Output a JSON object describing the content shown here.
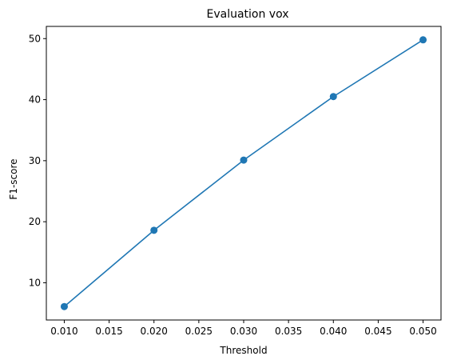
{
  "chart_data": {
    "type": "line",
    "title": "Evaluation vox",
    "xlabel": "Threshold",
    "ylabel": "F1-score",
    "series": [
      {
        "x": [
          0.01,
          0.02,
          0.03,
          0.04,
          0.05
        ],
        "y": [
          6.1,
          18.6,
          30.1,
          40.5,
          49.8
        ],
        "color": "#1f77b4",
        "marker": "circle"
      }
    ],
    "xlim": [
      0.008,
      0.052
    ],
    "ylim": [
      3.9,
      52.0
    ],
    "xticks": [
      0.01,
      0.015,
      0.02,
      0.025,
      0.03,
      0.035,
      0.04,
      0.045,
      0.05
    ],
    "xtick_labels": [
      "0.010",
      "0.015",
      "0.020",
      "0.025",
      "0.030",
      "0.035",
      "0.040",
      "0.045",
      "0.050"
    ],
    "yticks": [
      10,
      20,
      30,
      40,
      50
    ],
    "ytick_labels": [
      "10",
      "20",
      "30",
      "40",
      "50"
    ],
    "grid": false,
    "legend": "none"
  }
}
